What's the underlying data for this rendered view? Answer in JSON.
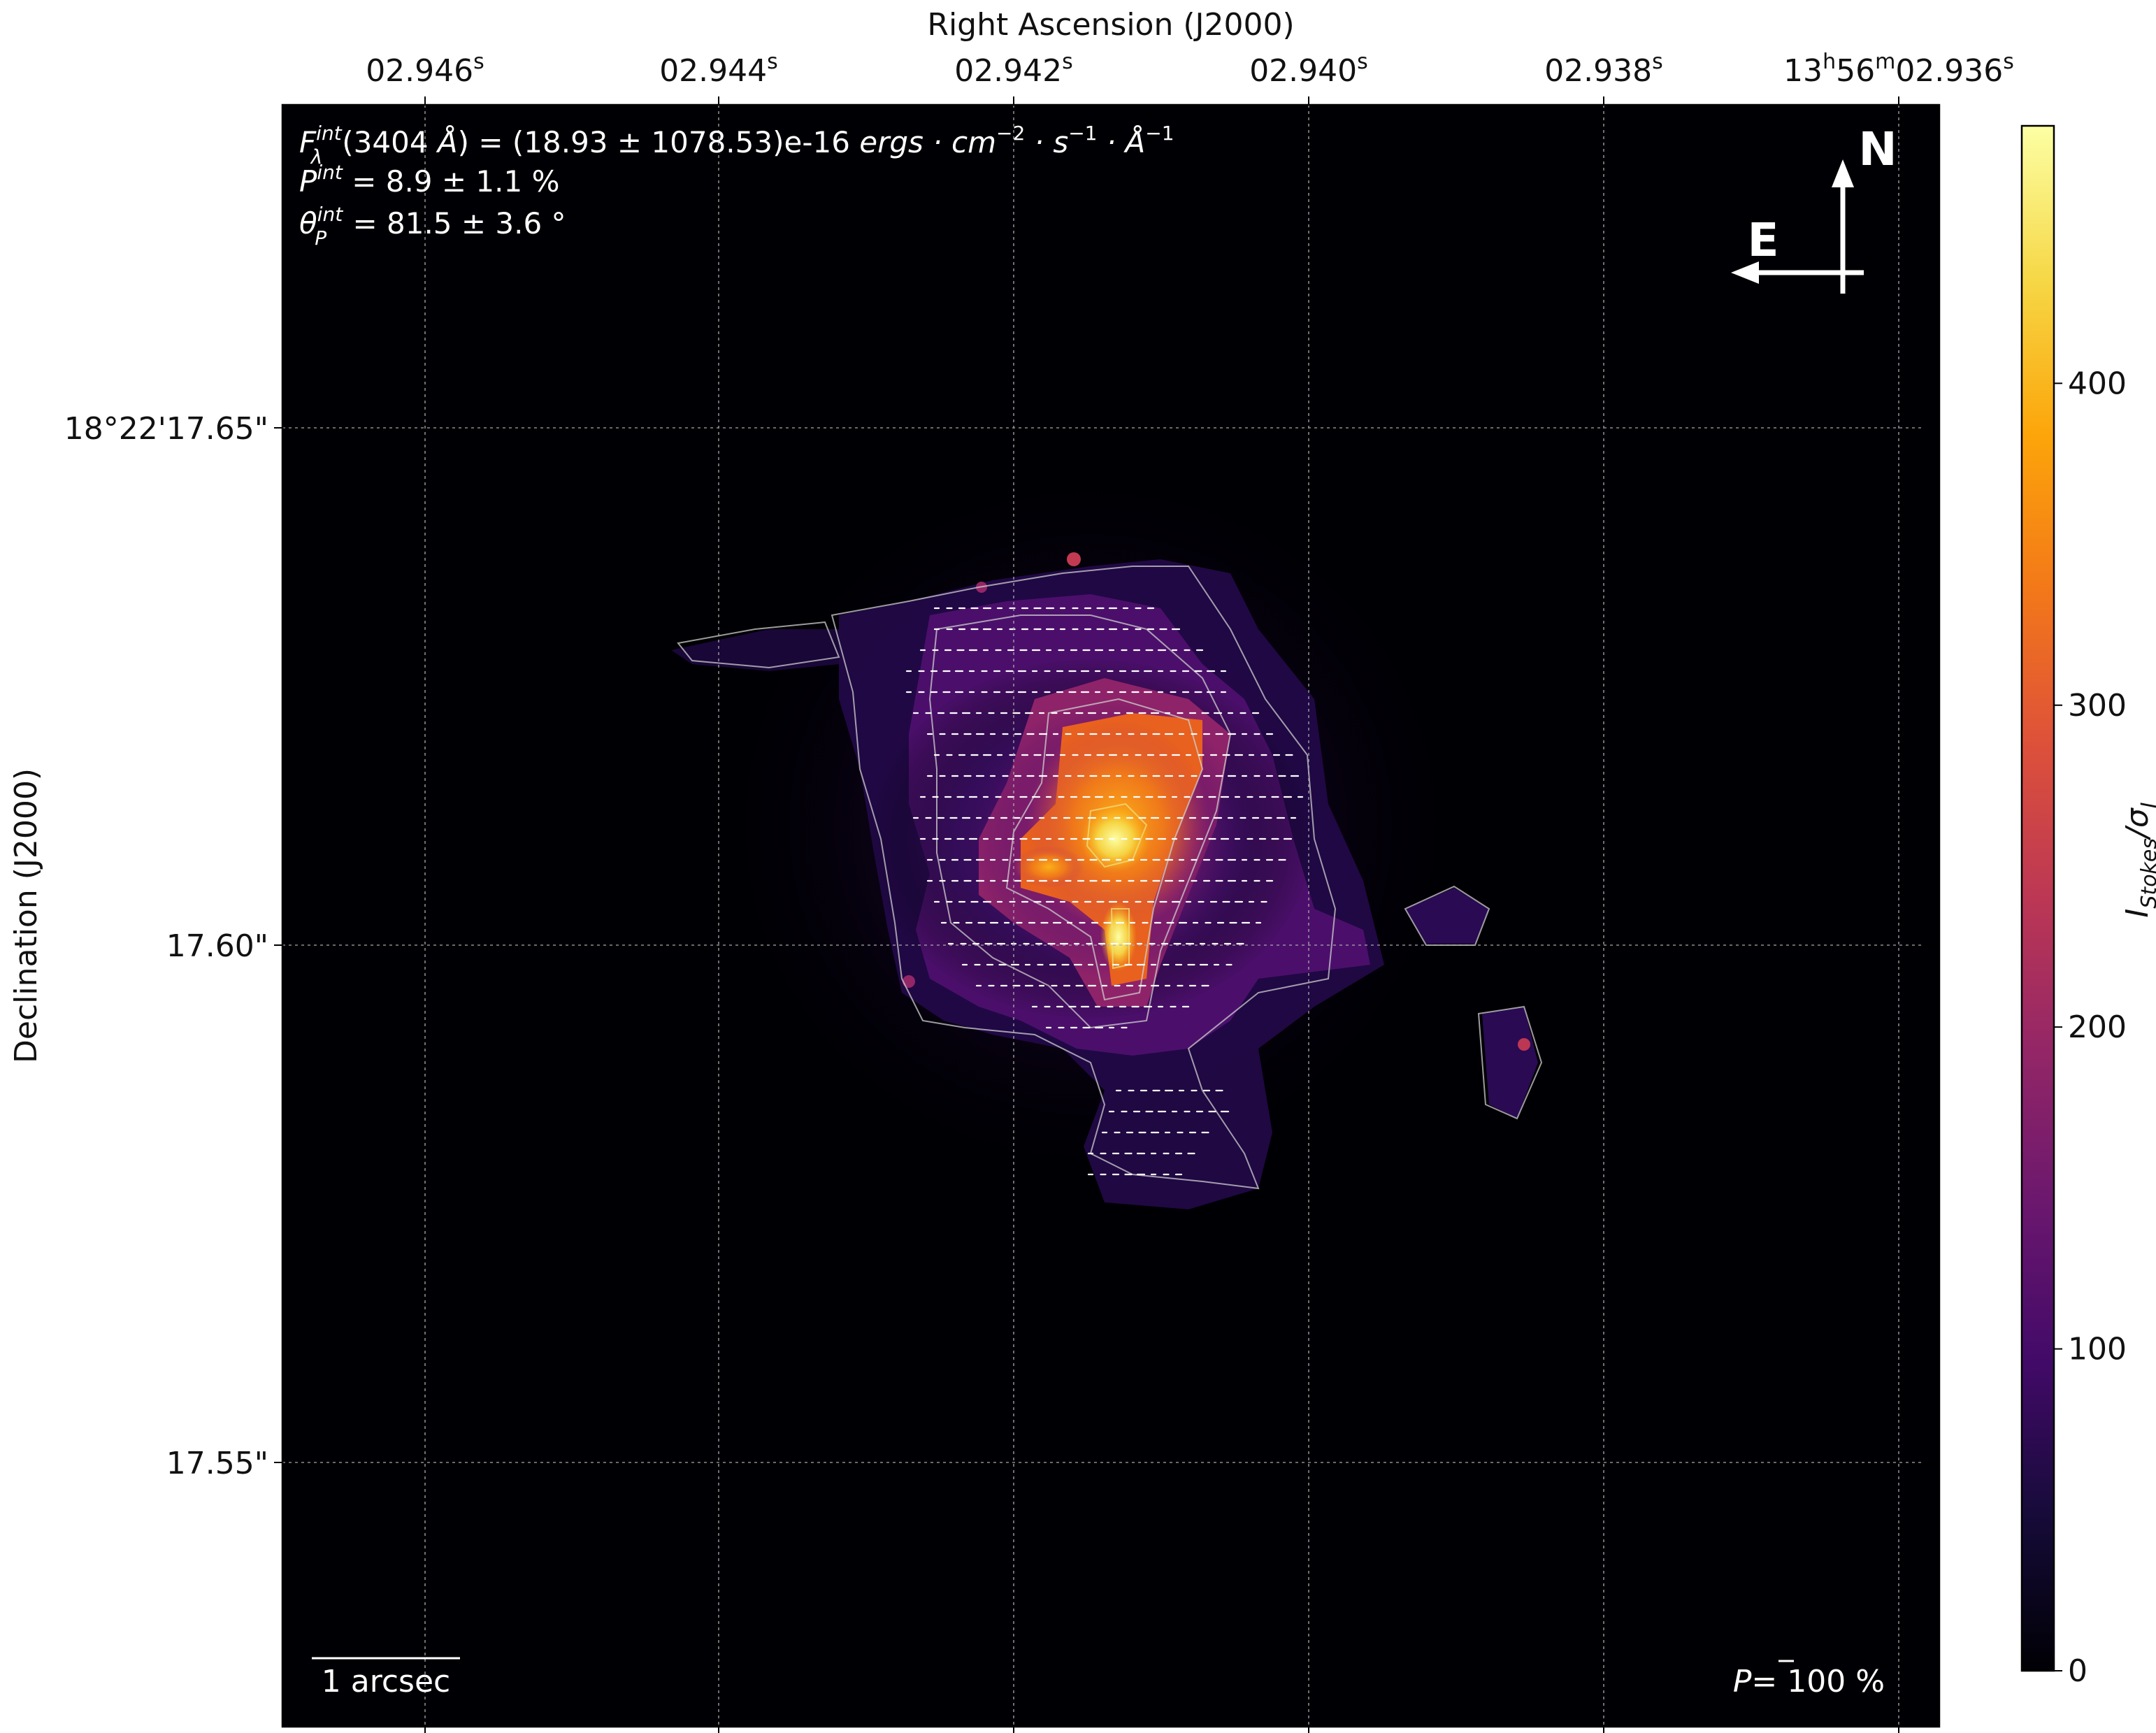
{
  "chart_data": {
    "type": "heatmap",
    "colormap": "inferno",
    "axes": {
      "xlabel": "Right Ascension (J2000)",
      "ylabel": "Declination (J2000)",
      "xticks": [
        "02.946",
        "02.944",
        "02.942",
        "02.940",
        "02.938",
        "13h56m02.936"
      ],
      "xtick_values_s": [
        2.946,
        2.944,
        2.942,
        2.94,
        2.938,
        2.936
      ],
      "xtick_parts": [
        {
          "pre": "02.946",
          "sup1": "s",
          "mid": "",
          "sup2": "",
          "post": ""
        },
        {
          "pre": "02.944",
          "sup1": "s",
          "mid": "",
          "sup2": "",
          "post": ""
        },
        {
          "pre": "02.942",
          "sup1": "s",
          "mid": "",
          "sup2": "",
          "post": ""
        },
        {
          "pre": "02.940",
          "sup1": "s",
          "mid": "",
          "sup2": "",
          "post": ""
        },
        {
          "pre": "02.938",
          "sup1": "s",
          "mid": "",
          "sup2": "",
          "post": ""
        },
        {
          "pre": "13",
          "sup1": "h",
          "mid": "56",
          "sup2": "m",
          "post": "02.936",
          "sup3": "s"
        }
      ],
      "yticks": [
        "18°22'17.65\"",
        "17.60\"",
        "17.55\""
      ],
      "ytick_values_arcsec": [
        17.65,
        17.6,
        17.55
      ],
      "grid": true,
      "grid_style": "dotted"
    },
    "annotations": {
      "flux_line": "F_λ^int(3404 Å) = (18.93 ± 1078.53)e-16 ergs·cm⁻²·s⁻¹·Å⁻¹",
      "pol_line": "P^int = 8.9 ± 1.1 %",
      "angle_line": "θ_P^int = 81.5 ± 3.6 °",
      "north_label": "N",
      "east_label": "E",
      "scalebar_label": "1 arcsec",
      "vector_scale_label": "P= 100 %"
    },
    "colorbar": {
      "label": "I_Stokes/σ_I",
      "min": 0,
      "max": 480,
      "ticks": [
        0,
        100,
        200,
        300,
        400
      ]
    },
    "peak_regions": [
      {
        "ra_s": 2.9413,
        "dec_arcsec": 17.612,
        "value": 470
      },
      {
        "ra_s": 2.9413,
        "dec_arcsec": 17.601,
        "value": 445
      },
      {
        "ra_s": 2.9419,
        "dec_arcsec": 17.608,
        "value": 390
      },
      {
        "ra_s": 2.9412,
        "dec_arcsec": 17.621,
        "value": 370
      }
    ]
  },
  "figure_text": {
    "flux_F": "F",
    "flux_sub": "λ",
    "flux_sup": "int",
    "flux_a": "(3404 ",
    "flux_angstrom": "Å",
    "flux_b": ") = (18.93 ± 1078.53)e-16 ",
    "flux_units": "ergs · cm",
    "flux_exp1": "−2",
    "flux_s": " · s",
    "flux_exp2": "−1",
    "flux_aa": " · Å",
    "flux_exp3": "−1",
    "pol_P": "P",
    "pol_sup": "int",
    "pol_val": " = 8.9 ± 1.1 %",
    "ang_theta": "θ",
    "ang_sub": "P",
    "ang_sup": "int",
    "ang_val": " = 81.5 ± 3.6 °",
    "cb_I": "I",
    "cb_sub": "Stokes",
    "cb_slash": "/σ",
    "cb_sub2": "I",
    "vec_P": "P",
    "vec_eq": "= ",
    "vec_val": "100 %"
  }
}
